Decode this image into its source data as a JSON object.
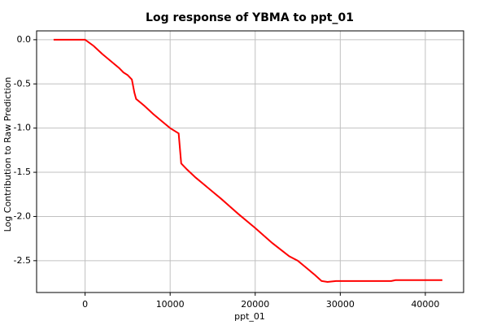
{
  "chart_data": {
    "type": "line",
    "title": "Log response of YBMA to ppt_01",
    "xlabel": "ppt_01",
    "ylabel": "Log Contribution to Raw Prediction",
    "x": [
      -3700,
      0,
      1000,
      2000,
      3000,
      4000,
      4500,
      5000,
      5500,
      5800,
      6000,
      7000,
      8000,
      9000,
      10000,
      10500,
      11000,
      11300,
      12000,
      13000,
      14000,
      15000,
      16000,
      18000,
      20000,
      22000,
      24000,
      25000,
      26000,
      27000,
      27800,
      28500,
      29500,
      32000,
      36000,
      36500,
      40000,
      42000
    ],
    "series": [
      {
        "name": "ppt_01",
        "color": "#ff0000",
        "values": [
          0,
          0,
          -0.07,
          -0.16,
          -0.24,
          -0.32,
          -0.37,
          -0.4,
          -0.45,
          -0.6,
          -0.67,
          -0.75,
          -0.84,
          -0.92,
          -1.0,
          -1.03,
          -1.06,
          -1.4,
          -1.47,
          -1.56,
          -1.64,
          -1.72,
          -1.8,
          -1.97,
          -2.13,
          -2.3,
          -2.45,
          -2.5,
          -2.58,
          -2.66,
          -2.73,
          -2.74,
          -2.73,
          -2.73,
          -2.73,
          -2.72,
          -2.72,
          -2.72
        ]
      }
    ],
    "xlim": [
      -5700,
      44500
    ],
    "ylim": [
      -2.86,
      0.1
    ],
    "xticks": [
      0,
      10000,
      20000,
      30000,
      40000
    ],
    "yticks": [
      {
        "value": 0,
        "label": "0.0"
      },
      -0.5,
      {
        "value": -1,
        "label": "-1.0"
      },
      -1.5,
      {
        "value": -2,
        "label": "-2.0"
      },
      -2.5
    ],
    "grid": true
  }
}
